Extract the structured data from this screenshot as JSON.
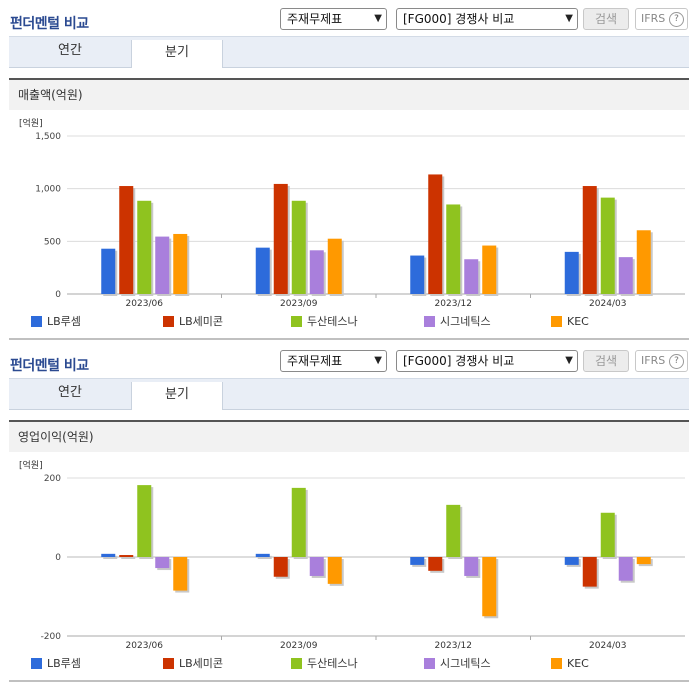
{
  "panels": [
    {
      "title": "펀더멘털 비교",
      "select1": "주재무제표",
      "select2": "[FG000] 경쟁사 비교",
      "search_label": "검색",
      "ifrs_label": "IFRS",
      "help_label": "?",
      "tabs": [
        {
          "label": "연간"
        },
        {
          "label": "분기"
        }
      ],
      "active_tab": "분기",
      "chart_label": "매출액(억원)"
    },
    {
      "title": "펀더멘털 비교",
      "select1": "주재무제표",
      "select2": "[FG000] 경쟁사 비교",
      "search_label": "검색",
      "ifrs_label": "IFRS",
      "help_label": "?",
      "tabs": [
        {
          "label": "연간"
        },
        {
          "label": "분기"
        }
      ],
      "active_tab": "분기",
      "chart_label": "영업이익(억원)"
    }
  ],
  "chart_data": [
    {
      "type": "bar",
      "title": "매출액(억원)",
      "unit_label": "[억원]",
      "categories": [
        "2023/06",
        "2023/09",
        "2023/12",
        "2024/03"
      ],
      "ylim": [
        0,
        1500
      ],
      "yticks": [
        0,
        500,
        1000,
        1500
      ],
      "ytick_labels": [
        "0",
        "500",
        "1,000",
        "1,500"
      ],
      "grid": true,
      "legend_position": "bottom",
      "series": [
        {
          "name": "LB루셈",
          "color": "#2d6bdb",
          "values": [
            430,
            440,
            365,
            400
          ]
        },
        {
          "name": "LB세미콘",
          "color": "#cc3300",
          "values": [
            1025,
            1045,
            1135,
            1025
          ]
        },
        {
          "name": "두산테스나",
          "color": "#8fc31f",
          "values": [
            885,
            885,
            850,
            915
          ]
        },
        {
          "name": "시그네틱스",
          "color": "#a97fdc",
          "values": [
            545,
            415,
            330,
            350
          ]
        },
        {
          "name": "KEC",
          "color": "#ff9900",
          "values": [
            570,
            525,
            460,
            605
          ]
        }
      ]
    },
    {
      "type": "bar",
      "title": "영업이익(억원)",
      "unit_label": "[억원]",
      "categories": [
        "2023/06",
        "2023/09",
        "2023/12",
        "2024/03"
      ],
      "ylim": [
        -200,
        200
      ],
      "yticks": [
        -200,
        0,
        200
      ],
      "ytick_labels": [
        "-200",
        "0",
        "200"
      ],
      "grid": true,
      "legend_position": "bottom",
      "series": [
        {
          "name": "LB루셈",
          "color": "#2d6bdb",
          "values": [
            8,
            8,
            -20,
            -20
          ]
        },
        {
          "name": "LB세미콘",
          "color": "#cc3300",
          "values": [
            5,
            -50,
            -35,
            -75
          ]
        },
        {
          "name": "두산테스나",
          "color": "#8fc31f",
          "values": [
            182,
            175,
            132,
            112
          ]
        },
        {
          "name": "시그네틱스",
          "color": "#a97fdc",
          "values": [
            -28,
            -48,
            -48,
            -60
          ]
        },
        {
          "name": "KEC",
          "color": "#ff9900",
          "values": [
            -85,
            -68,
            -150,
            -18
          ]
        }
      ]
    }
  ]
}
